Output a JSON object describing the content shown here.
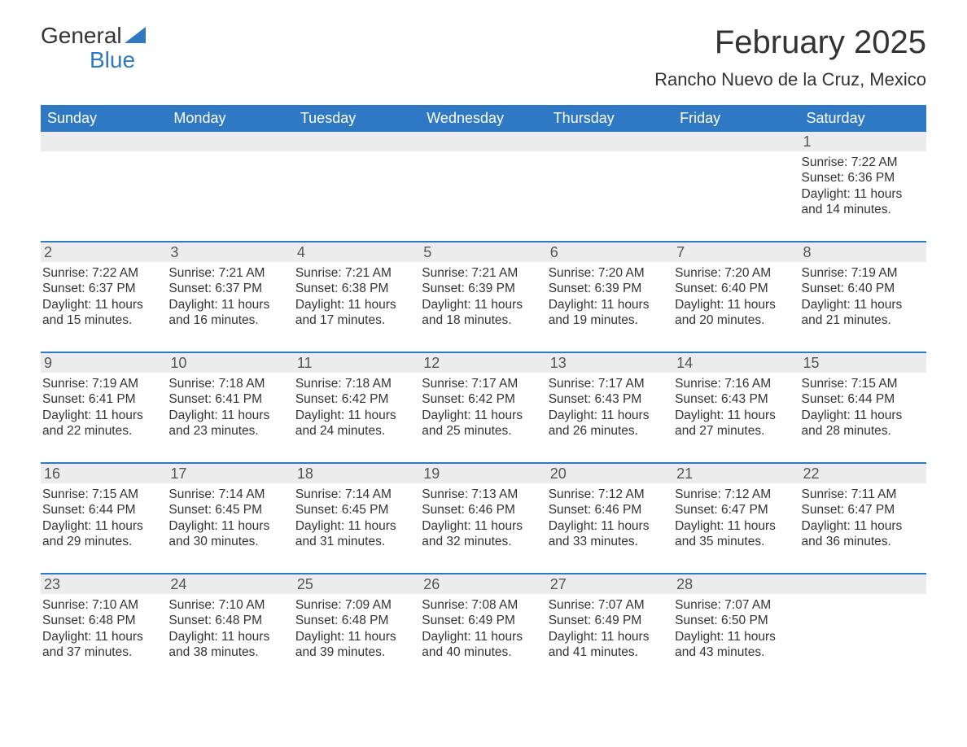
{
  "logo": {
    "word1": "General",
    "word2": "Blue",
    "triangle_color": "#2f78c4"
  },
  "header": {
    "month_title": "February 2025",
    "location": "Rancho Nuevo de la Cruz, Mexico"
  },
  "colors": {
    "header_bg": "#2f78c4",
    "header_text": "#ffffff",
    "strip_bg": "#ececec",
    "week_divider": "#2f78c4",
    "body_text": "#333333"
  },
  "typography": {
    "title_fontsize": 40,
    "location_fontsize": 22,
    "dayhead_fontsize": 18,
    "body_fontsize": 15.5
  },
  "day_headers": [
    "Sunday",
    "Monday",
    "Tuesday",
    "Wednesday",
    "Thursday",
    "Friday",
    "Saturday"
  ],
  "labels": {
    "sunrise": "Sunrise:",
    "sunset": "Sunset:",
    "daylight": "Daylight:"
  },
  "weeks": [
    [
      {
        "empty": true
      },
      {
        "empty": true
      },
      {
        "empty": true
      },
      {
        "empty": true
      },
      {
        "empty": true
      },
      {
        "empty": true
      },
      {
        "day": "1",
        "sunrise": "7:22 AM",
        "sunset": "6:36 PM",
        "daylight_l1": "11 hours",
        "daylight_l2": "and 14 minutes."
      }
    ],
    [
      {
        "day": "2",
        "sunrise": "7:22 AM",
        "sunset": "6:37 PM",
        "daylight_l1": "11 hours",
        "daylight_l2": "and 15 minutes."
      },
      {
        "day": "3",
        "sunrise": "7:21 AM",
        "sunset": "6:37 PM",
        "daylight_l1": "11 hours",
        "daylight_l2": "and 16 minutes."
      },
      {
        "day": "4",
        "sunrise": "7:21 AM",
        "sunset": "6:38 PM",
        "daylight_l1": "11 hours",
        "daylight_l2": "and 17 minutes."
      },
      {
        "day": "5",
        "sunrise": "7:21 AM",
        "sunset": "6:39 PM",
        "daylight_l1": "11 hours",
        "daylight_l2": "and 18 minutes."
      },
      {
        "day": "6",
        "sunrise": "7:20 AM",
        "sunset": "6:39 PM",
        "daylight_l1": "11 hours",
        "daylight_l2": "and 19 minutes."
      },
      {
        "day": "7",
        "sunrise": "7:20 AM",
        "sunset": "6:40 PM",
        "daylight_l1": "11 hours",
        "daylight_l2": "and 20 minutes."
      },
      {
        "day": "8",
        "sunrise": "7:19 AM",
        "sunset": "6:40 PM",
        "daylight_l1": "11 hours",
        "daylight_l2": "and 21 minutes."
      }
    ],
    [
      {
        "day": "9",
        "sunrise": "7:19 AM",
        "sunset": "6:41 PM",
        "daylight_l1": "11 hours",
        "daylight_l2": "and 22 minutes."
      },
      {
        "day": "10",
        "sunrise": "7:18 AM",
        "sunset": "6:41 PM",
        "daylight_l1": "11 hours",
        "daylight_l2": "and 23 minutes."
      },
      {
        "day": "11",
        "sunrise": "7:18 AM",
        "sunset": "6:42 PM",
        "daylight_l1": "11 hours",
        "daylight_l2": "and 24 minutes."
      },
      {
        "day": "12",
        "sunrise": "7:17 AM",
        "sunset": "6:42 PM",
        "daylight_l1": "11 hours",
        "daylight_l2": "and 25 minutes."
      },
      {
        "day": "13",
        "sunrise": "7:17 AM",
        "sunset": "6:43 PM",
        "daylight_l1": "11 hours",
        "daylight_l2": "and 26 minutes."
      },
      {
        "day": "14",
        "sunrise": "7:16 AM",
        "sunset": "6:43 PM",
        "daylight_l1": "11 hours",
        "daylight_l2": "and 27 minutes."
      },
      {
        "day": "15",
        "sunrise": "7:15 AM",
        "sunset": "6:44 PM",
        "daylight_l1": "11 hours",
        "daylight_l2": "and 28 minutes."
      }
    ],
    [
      {
        "day": "16",
        "sunrise": "7:15 AM",
        "sunset": "6:44 PM",
        "daylight_l1": "11 hours",
        "daylight_l2": "and 29 minutes."
      },
      {
        "day": "17",
        "sunrise": "7:14 AM",
        "sunset": "6:45 PM",
        "daylight_l1": "11 hours",
        "daylight_l2": "and 30 minutes."
      },
      {
        "day": "18",
        "sunrise": "7:14 AM",
        "sunset": "6:45 PM",
        "daylight_l1": "11 hours",
        "daylight_l2": "and 31 minutes."
      },
      {
        "day": "19",
        "sunrise": "7:13 AM",
        "sunset": "6:46 PM",
        "daylight_l1": "11 hours",
        "daylight_l2": "and 32 minutes."
      },
      {
        "day": "20",
        "sunrise": "7:12 AM",
        "sunset": "6:46 PM",
        "daylight_l1": "11 hours",
        "daylight_l2": "and 33 minutes."
      },
      {
        "day": "21",
        "sunrise": "7:12 AM",
        "sunset": "6:47 PM",
        "daylight_l1": "11 hours",
        "daylight_l2": "and 35 minutes."
      },
      {
        "day": "22",
        "sunrise": "7:11 AM",
        "sunset": "6:47 PM",
        "daylight_l1": "11 hours",
        "daylight_l2": "and 36 minutes."
      }
    ],
    [
      {
        "day": "23",
        "sunrise": "7:10 AM",
        "sunset": "6:48 PM",
        "daylight_l1": "11 hours",
        "daylight_l2": "and 37 minutes."
      },
      {
        "day": "24",
        "sunrise": "7:10 AM",
        "sunset": "6:48 PM",
        "daylight_l1": "11 hours",
        "daylight_l2": "and 38 minutes."
      },
      {
        "day": "25",
        "sunrise": "7:09 AM",
        "sunset": "6:48 PM",
        "daylight_l1": "11 hours",
        "daylight_l2": "and 39 minutes."
      },
      {
        "day": "26",
        "sunrise": "7:08 AM",
        "sunset": "6:49 PM",
        "daylight_l1": "11 hours",
        "daylight_l2": "and 40 minutes."
      },
      {
        "day": "27",
        "sunrise": "7:07 AM",
        "sunset": "6:49 PM",
        "daylight_l1": "11 hours",
        "daylight_l2": "and 41 minutes."
      },
      {
        "day": "28",
        "sunrise": "7:07 AM",
        "sunset": "6:50 PM",
        "daylight_l1": "11 hours",
        "daylight_l2": "and 43 minutes."
      },
      {
        "empty": true
      }
    ]
  ]
}
